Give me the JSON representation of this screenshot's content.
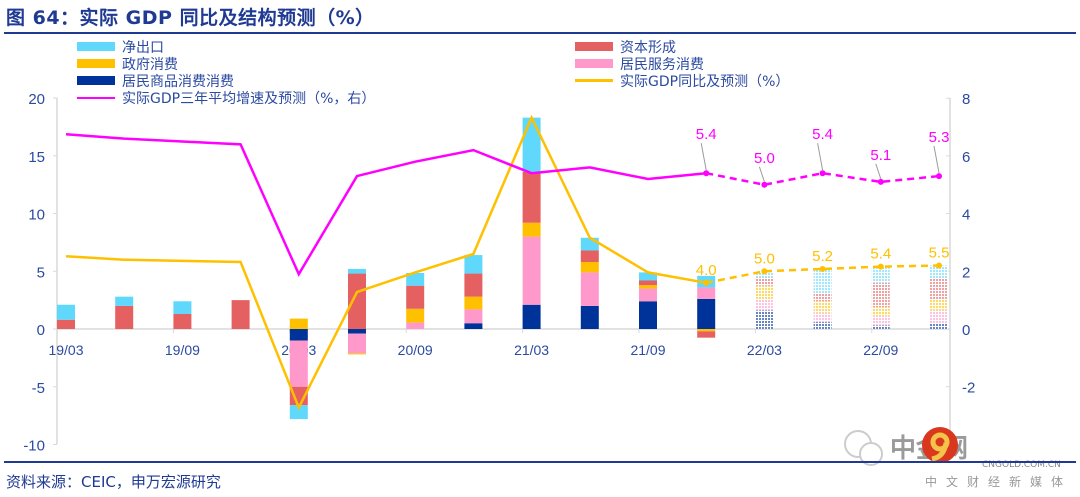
{
  "title": "图 64：实际 GDP 同比及结构预测（%）",
  "source": "资料来源：CEIC，申万宏源研究",
  "watermark": {
    "text": "中金网",
    "sub": "CNGOLD.COM.CN",
    "sub2": "中文财经新媒体",
    "wechat": "申万宏源"
  },
  "chart_data": {
    "type": "bar",
    "stacked": true,
    "categories": [
      "19/03",
      "19/06",
      "19/09",
      "19/12",
      "20/03",
      "20/06",
      "20/09",
      "20/12",
      "21/03",
      "21/06",
      "21/09",
      "21/12",
      "22/03",
      "22/06",
      "22/09",
      "22/12"
    ],
    "x_tick_labels": [
      "19/03",
      "19/09",
      "20/03",
      "20/09",
      "21/03",
      "21/09",
      "22/03",
      "22/09"
    ],
    "forecast_start": "22/03",
    "y_left": {
      "ylim": [
        -10,
        20
      ],
      "ticks": [
        "20",
        "15",
        "10",
        "5",
        "0",
        "-5",
        "-10"
      ]
    },
    "y_right": {
      "ylim": [
        -4,
        8
      ],
      "ticks": [
        "8",
        "6",
        "4",
        "2",
        "0",
        "-2"
      ]
    },
    "legend": {
      "placement": "top"
    },
    "series": [
      {
        "name": "居民商品消费消费",
        "color": "#003399",
        "axis": "left",
        "values": [
          0,
          0,
          0,
          0,
          -1.0,
          -0.4,
          0,
          0.5,
          2.1,
          2.0,
          2.4,
          2.6,
          1.6,
          0.6,
          0.3,
          0.5
        ]
      },
      {
        "name": "居民服务消费",
        "color": "#ff99cc",
        "axis": "left",
        "values": [
          0,
          0,
          0,
          0,
          -4.0,
          -1.7,
          0.55,
          1.2,
          5.9,
          2.9,
          1.1,
          1.0,
          0.95,
          0.8,
          0.8,
          1.1
        ]
      },
      {
        "name": "政府消费",
        "color": "#ffc000",
        "axis": "left",
        "values": [
          0,
          0,
          0,
          0,
          0.9,
          -0.1,
          1.2,
          1.1,
          1.2,
          0.9,
          0.3,
          -0.2,
          1.2,
          1.0,
          0.8,
          1.0
        ]
      },
      {
        "name": "资本形成",
        "color": "#e56060",
        "axis": "left",
        "values": [
          0.8,
          2.0,
          1.3,
          2.5,
          -1.6,
          4.8,
          2.0,
          2.0,
          4.4,
          1.0,
          0.4,
          -0.55,
          0.7,
          0.7,
          2.1,
          1.8
        ]
      },
      {
        "name": "净出口",
        "color": "#5fd8fb",
        "axis": "left",
        "values": [
          1.3,
          0.8,
          1.1,
          0,
          -1.2,
          0.4,
          1.1,
          1.6,
          4.7,
          1.1,
          0.7,
          1.0,
          0.5,
          2.1,
          1.35,
          1.1
        ]
      }
    ],
    "lines": [
      {
        "name": "实际GDP同比及预测（%）",
        "color": "#ffc000",
        "axis": "left",
        "values": [
          6.3,
          6.0,
          5.9,
          5.8,
          -6.8,
          3.2,
          4.9,
          6.5,
          18.3,
          7.9,
          4.9,
          4.0,
          5.0,
          5.2,
          5.4,
          5.5
        ],
        "data_labels": {
          "11": "4.0",
          "12": "5.0",
          "13": "5.2",
          "14": "5.4",
          "15": "5.5"
        }
      },
      {
        "name": "实际GDP三年平均增速及预测（%，右）",
        "color": "#ff00ff",
        "axis": "right",
        "values": [
          6.75,
          6.6,
          6.5,
          6.4,
          1.9,
          5.3,
          5.8,
          6.2,
          5.4,
          5.6,
          5.2,
          5.4,
          5.0,
          5.4,
          5.1,
          5.3
        ],
        "data_labels": {
          "11": "5.4",
          "12": "5.0",
          "13": "5.4",
          "14": "5.1",
          "15": "5.3"
        }
      }
    ]
  }
}
